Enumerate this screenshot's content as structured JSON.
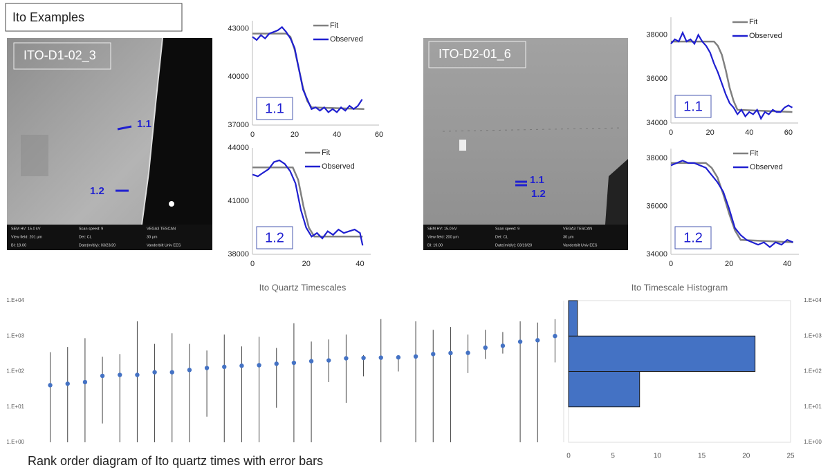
{
  "slide": {
    "title": "Ito Examples",
    "caption": "Rank order diagram of Ito quartz times with error bars"
  },
  "images": [
    {
      "label": "ITO-D1-02_3",
      "markers": [
        "1.1",
        "1.2"
      ],
      "info": [
        "SEM HV: 15.0 kV",
        "Scan speed: 9",
        "VEGA3 TESCAN",
        "View field: 201 μm",
        "Det: CL",
        "30 μm",
        "BI: 19.00",
        "Date(m/d/y): 03/23/20",
        "Vanderbilt Univ EES"
      ]
    },
    {
      "label": "ITO-D2-01_6",
      "markers": [
        "1.1",
        "1.2"
      ],
      "info": [
        "SEM HV: 15.0 kV",
        "Scan speed: 9",
        "VEGA3 TESCAN",
        "View field: 200 μm",
        "Det: CL",
        "30 μm",
        "BI: 19.00",
        "Date(m/d/y): 03/19/20",
        "Vanderbilt Univ EES"
      ]
    }
  ],
  "chart_data": [
    {
      "type": "line",
      "annotation": "1.1",
      "xlim": [
        0,
        60
      ],
      "xticks": [
        0,
        20,
        40,
        60
      ],
      "ylim": [
        37000,
        43500
      ],
      "yticks": [
        37000,
        40000,
        43000
      ],
      "series": [
        {
          "name": "Fit",
          "color": "#808080",
          "x": [
            0,
            16,
            18,
            20,
            22,
            24,
            26,
            28,
            53
          ],
          "values": [
            42700,
            42700,
            42500,
            41700,
            40500,
            39300,
            38500,
            38100,
            38000
          ]
        },
        {
          "name": "Observed",
          "color": "#1f1fd0",
          "x": [
            0,
            2,
            4,
            6,
            8,
            10,
            12,
            14,
            16,
            18,
            20,
            22,
            24,
            26,
            28,
            30,
            32,
            34,
            36,
            38,
            40,
            42,
            44,
            46,
            48,
            50,
            52
          ],
          "values": [
            42500,
            42300,
            42600,
            42400,
            42700,
            42800,
            42900,
            43100,
            42800,
            42400,
            41800,
            40500,
            39200,
            38600,
            38000,
            38100,
            37900,
            38100,
            37800,
            38000,
            37800,
            38100,
            37900,
            38200,
            38000,
            38200,
            38600
          ]
        }
      ]
    },
    {
      "type": "line",
      "annotation": "1.2",
      "xlim": [
        0,
        44
      ],
      "xticks": [
        0,
        20,
        40
      ],
      "ylim": [
        38000,
        44000
      ],
      "yticks": [
        38000,
        41000,
        44000
      ],
      "series": [
        {
          "name": "Fit",
          "color": "#808080",
          "x": [
            0,
            15,
            17,
            19,
            21,
            23,
            41
          ],
          "values": [
            42900,
            42900,
            42200,
            40700,
            39500,
            39000,
            39000
          ]
        },
        {
          "name": "Observed",
          "color": "#1f1fd0",
          "x": [
            0,
            2,
            4,
            6,
            8,
            10,
            12,
            14,
            16,
            18,
            20,
            22,
            24,
            26,
            28,
            30,
            32,
            34,
            36,
            38,
            40,
            41
          ],
          "values": [
            42500,
            42400,
            42600,
            42800,
            43200,
            43300,
            43100,
            42700,
            42000,
            40500,
            39500,
            39000,
            39200,
            38900,
            39300,
            39100,
            39400,
            39200,
            39300,
            39400,
            39200,
            38500
          ]
        }
      ]
    },
    {
      "type": "line",
      "annotation": "1.1",
      "xlim": [
        0,
        65
      ],
      "xticks": [
        0,
        20,
        40,
        60
      ],
      "ylim": [
        34000,
        38800
      ],
      "yticks": [
        34000,
        36000,
        38000
      ],
      "series": [
        {
          "name": "Fit",
          "color": "#808080",
          "x": [
            0,
            22,
            24,
            26,
            28,
            30,
            32,
            34,
            62
          ],
          "values": [
            37700,
            37700,
            37500,
            37100,
            36400,
            35600,
            35000,
            34600,
            34500
          ]
        },
        {
          "name": "Observed",
          "color": "#1f1fd0",
          "x": [
            0,
            2,
            4,
            6,
            8,
            10,
            12,
            14,
            16,
            18,
            20,
            22,
            24,
            26,
            28,
            30,
            32,
            34,
            36,
            38,
            40,
            42,
            44,
            46,
            48,
            50,
            52,
            54,
            56,
            58,
            60,
            62
          ],
          "values": [
            37600,
            37800,
            37700,
            38100,
            37700,
            37800,
            37600,
            38000,
            37700,
            37500,
            37200,
            36700,
            36300,
            35800,
            35300,
            34900,
            34700,
            34400,
            34600,
            34300,
            34500,
            34400,
            34600,
            34200,
            34500,
            34400,
            34600,
            34500,
            34500,
            34700,
            34800,
            34700
          ]
        }
      ]
    },
    {
      "type": "line",
      "annotation": "1.2",
      "xlim": [
        0,
        44
      ],
      "xticks": [
        0,
        20,
        40
      ],
      "ylim": [
        34000,
        38400
      ],
      "yticks": [
        34000,
        36000,
        38000
      ],
      "series": [
        {
          "name": "Fit",
          "color": "#808080",
          "x": [
            0,
            12,
            14,
            16,
            18,
            20,
            22,
            24,
            42
          ],
          "values": [
            37800,
            37800,
            37600,
            37200,
            36500,
            35700,
            35000,
            34600,
            34500
          ]
        },
        {
          "name": "Observed",
          "color": "#1f1fd0",
          "x": [
            0,
            2,
            4,
            6,
            8,
            10,
            12,
            14,
            16,
            18,
            20,
            22,
            24,
            26,
            28,
            30,
            32,
            34,
            36,
            38,
            40,
            42
          ],
          "values": [
            37700,
            37800,
            37900,
            37800,
            37800,
            37700,
            37600,
            37300,
            37000,
            36600,
            35900,
            35100,
            34800,
            34600,
            34500,
            34400,
            34500,
            34300,
            34500,
            34400,
            34600,
            34500
          ]
        }
      ]
    },
    {
      "type": "errorbar",
      "title": "Ito Quartz Timescales",
      "log_scale": true,
      "color": "#4472c4",
      "error_color": "#404040",
      "ylim": [
        1,
        10000
      ],
      "yticks": [
        {
          "value": 1,
          "label": "1.E+00"
        },
        {
          "value": 10,
          "label": "1.E+01"
        },
        {
          "value": 100,
          "label": "1.E+02"
        },
        {
          "value": 1000,
          "label": "1.E+03"
        },
        {
          "value": 10000,
          "label": "1.E+04"
        }
      ],
      "values": [
        41,
        45,
        50,
        75,
        80,
        80,
        95,
        95,
        110,
        125,
        135,
        145,
        150,
        165,
        175,
        195,
        205,
        235,
        240,
        245,
        250,
        265,
        310,
        330,
        335,
        470,
        530,
        690,
        760,
        1000
      ],
      "error_low": [
        1,
        1,
        1,
        3.4,
        1,
        1,
        1,
        1,
        1,
        5.3,
        1,
        1,
        1,
        9.5,
        1,
        1,
        50,
        13,
        73,
        1,
        100,
        1,
        1,
        1,
        90,
        225,
        320,
        1,
        1,
        180
      ],
      "error_high": [
        350,
        490,
        870,
        260,
        310,
        2600,
        600,
        1200,
        600,
        390,
        1100,
        510,
        950,
        460,
        2300,
        700,
        800,
        1100,
        290,
        3000,
        280,
        2600,
        1500,
        1800,
        1100,
        1500,
        1300,
        2600,
        2400,
        3000
      ]
    },
    {
      "type": "histogram",
      "orientation": "horizontal",
      "title": "Ito Timescale Histogram",
      "log_scale": true,
      "color": "#4472c4",
      "bins": [
        10,
        100,
        1000,
        10000
      ],
      "values": [
        8,
        21,
        1
      ],
      "xlim": [
        0,
        25
      ],
      "xticks": [
        0,
        5,
        10,
        15,
        20,
        25
      ],
      "ylim": [
        1,
        10000
      ],
      "yticks": [
        {
          "value": 1,
          "label": "1.E+00"
        },
        {
          "value": 10,
          "label": "1.E+01"
        },
        {
          "value": 100,
          "label": "1.E+02"
        },
        {
          "value": 1000,
          "label": "1.E+03"
        },
        {
          "value": 10000,
          "label": "1.E+04"
        }
      ]
    }
  ]
}
